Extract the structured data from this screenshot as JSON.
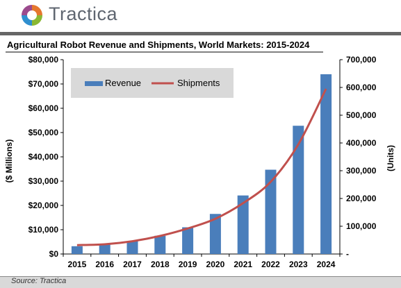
{
  "brand": {
    "name": "Tractica",
    "logo_colors": [
      "#e5772e",
      "#8ab833",
      "#2f8fcf",
      "#9b4a8d"
    ]
  },
  "source": "Source: Tractica",
  "chart_data": {
    "type": "bar+line",
    "title": "Agricultural Robot Revenue and Shipments, World Markets: 2015-2024",
    "categories": [
      "2015",
      "2016",
      "2017",
      "2018",
      "2019",
      "2020",
      "2021",
      "2022",
      "2023",
      "2024"
    ],
    "series": [
      {
        "name": "Revenue",
        "type": "bar",
        "axis": "left",
        "color": "#4a7ebb",
        "values": [
          3200,
          3900,
          5300,
          7500,
          11000,
          16500,
          24100,
          34700,
          52800,
          74000
        ]
      },
      {
        "name": "Shipments",
        "type": "line",
        "axis": "right",
        "color": "#c0504d",
        "values": [
          32000,
          35000,
          46000,
          65000,
          92000,
          127000,
          183000,
          260000,
          395000,
          595000
        ]
      }
    ],
    "ylabel_left": "($ Millions)",
    "ylabel_right": "(Units)",
    "ylim_left": [
      0,
      80000
    ],
    "ylim_right": [
      0,
      700000
    ],
    "yticks_left": [
      "$0",
      "$10,000",
      "$20,000",
      "$30,000",
      "$40,000",
      "$50,000",
      "$60,000",
      "$70,000",
      "$80,000"
    ],
    "yticks_right": [
      "-",
      "100,000",
      "200,000",
      "300,000",
      "400,000",
      "500,000",
      "600,000",
      "700,000"
    ],
    "legend_position": "top-left",
    "legend_background": "#d9d9d9",
    "grid": false
  }
}
